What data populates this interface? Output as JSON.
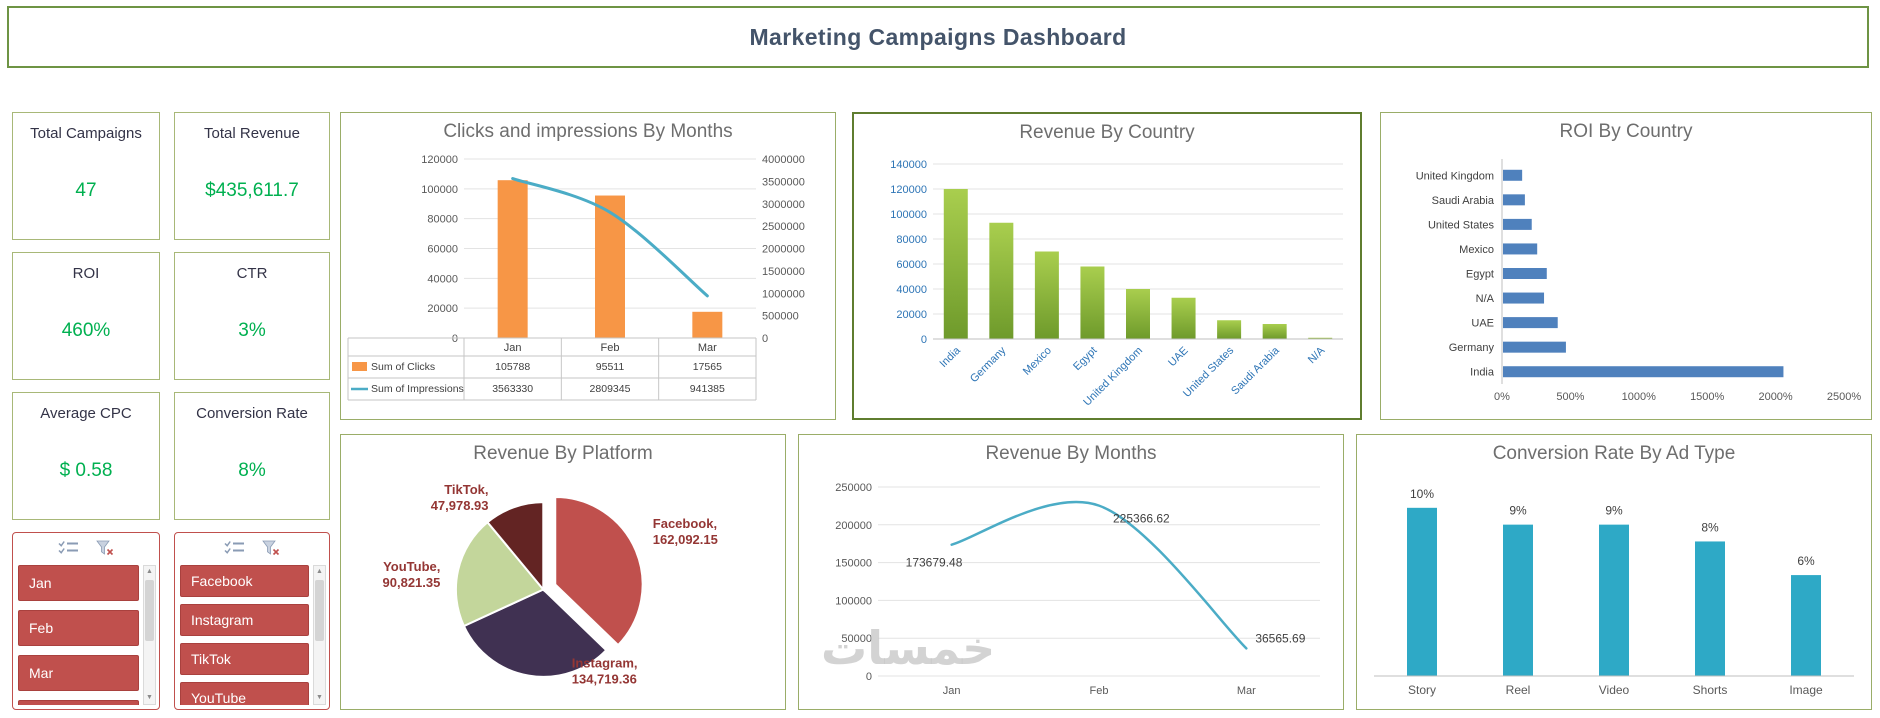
{
  "title": "Marketing Campaigns Dashboard",
  "watermark": "خمسات",
  "kpis": [
    {
      "label": "Total Campaigns",
      "value": "47"
    },
    {
      "label": "Total Revenue",
      "value": "$435,611.7"
    },
    {
      "label": "ROI",
      "value": "460%"
    },
    {
      "label": "CTR",
      "value": "3%"
    },
    {
      "label": "Average CPC",
      "value": "$ 0.58"
    },
    {
      "label": "Conversion Rate",
      "value": "8%"
    }
  ],
  "slicers": [
    {
      "name": "months",
      "items": [
        "Jan",
        "Feb",
        "Mar"
      ],
      "clipped_item": ""
    },
    {
      "name": "platforms",
      "items": [
        "Facebook",
        "Instagram",
        "TikTok"
      ],
      "clipped_item": "YouTube"
    }
  ],
  "chart_data": [
    {
      "id": "clicks_impressions",
      "type": "combo",
      "title": "Clicks and impressions By Months",
      "categories": [
        "Jan",
        "Feb",
        "Mar"
      ],
      "series": [
        {
          "name": "Sum of Clicks",
          "chart": "bar",
          "axis": "left",
          "color": "#F79646",
          "values": [
            105788,
            95511,
            17565
          ]
        },
        {
          "name": "Sum of Impressions",
          "chart": "line",
          "axis": "right",
          "color": "#4BACC6",
          "values": [
            3563330,
            2809345,
            941385
          ]
        }
      ],
      "left_axis": {
        "min": 0,
        "max": 120000,
        "step": 20000
      },
      "right_axis": {
        "min": 0,
        "max": 4000000,
        "step": 500000
      },
      "data_table": true,
      "grid": true
    },
    {
      "id": "revenue_by_country",
      "type": "bar",
      "title": "Revenue By Country",
      "categories": [
        "India",
        "Germany",
        "Mexico",
        "Egypt",
        "United Kingdom",
        "UAE",
        "United States",
        "Saudi Arabia",
        "N/A"
      ],
      "values": [
        120000,
        93000,
        70000,
        58000,
        40000,
        33000,
        15000,
        12000,
        1000
      ],
      "ylim": [
        0,
        140000
      ],
      "ystep": 20000,
      "bar_top": "#A9CE4E",
      "bar_bottom": "#6E9A2B",
      "tick_color": "#2E75B6",
      "grid": true
    },
    {
      "id": "roi_by_country",
      "type": "barh",
      "title": "ROI By Country",
      "categories": [
        "United Kingdom",
        "Saudi Arabia",
        "United States",
        "Mexico",
        "Egypt",
        "N/A",
        "UAE",
        "Germany",
        "India"
      ],
      "values": [
        140,
        160,
        210,
        250,
        320,
        300,
        400,
        460,
        2050
      ],
      "xlim": [
        0,
        2500
      ],
      "xstep": 500,
      "tick_format": "percent",
      "bar_color": "#4F81BD",
      "grid": false
    },
    {
      "id": "revenue_by_platform",
      "type": "pie",
      "title": "Revenue By Platform",
      "slices": [
        {
          "name": "Facebook",
          "value": 162092.15,
          "value_label": "162,092.15",
          "color": "#C0504D",
          "exploded": true
        },
        {
          "name": "Instagram",
          "value": 134719.36,
          "value_label": "134,719.36",
          "color": "#403152",
          "exploded": false
        },
        {
          "name": "YouTube",
          "value": 90821.35,
          "value_label": "90,821.35",
          "color": "#C3D69B",
          "exploded": false
        },
        {
          "name": "TikTok",
          "value": 47978.93,
          "value_label": "47,978.93",
          "color": "#632423",
          "exploded": false
        }
      ],
      "label_color": "#943634"
    },
    {
      "id": "revenue_by_months",
      "type": "line",
      "title": "Revenue By Months",
      "categories": [
        "Jan",
        "Feb",
        "Mar"
      ],
      "values": [
        173679.48,
        225366.62,
        36565.69
      ],
      "labels": [
        "173679.48",
        "225366.62",
        "36565.69"
      ],
      "ylim": [
        0,
        250000
      ],
      "ystep": 50000,
      "line_color": "#4BACC6",
      "grid": true
    },
    {
      "id": "conversion_rate_by_ad_type",
      "type": "bar",
      "title": "Conversion Rate By Ad Type",
      "categories": [
        "Story",
        "Reel",
        "Video",
        "Shorts",
        "Image"
      ],
      "values": [
        10,
        9,
        9,
        8,
        6
      ],
      "labels": [
        "10%",
        "9%",
        "9%",
        "8%",
        "6%"
      ],
      "ylim": [
        0,
        11
      ],
      "axis_visible": false,
      "bar_color": "#2EA9C6",
      "grid": false
    }
  ]
}
